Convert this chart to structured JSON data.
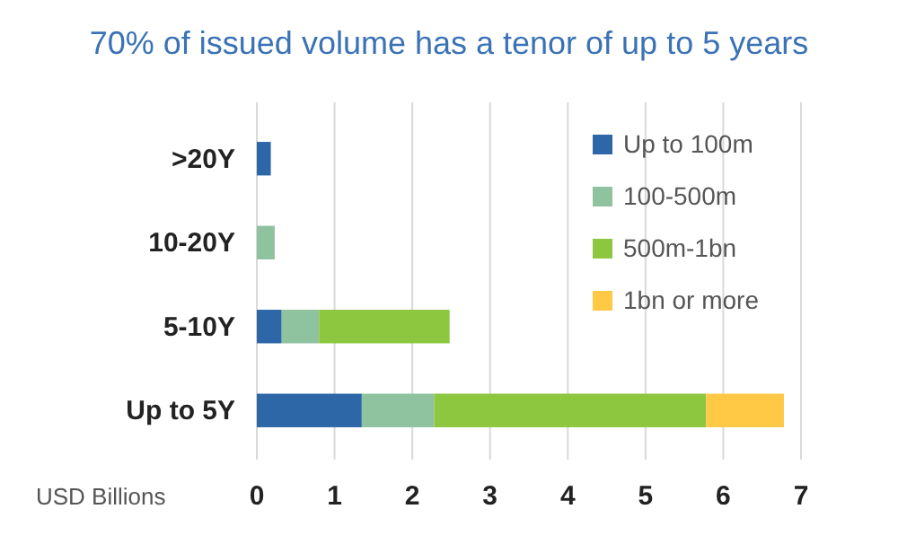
{
  "chart_data": {
    "type": "bar",
    "orientation": "horizontal",
    "stacked": true,
    "title": "70% of issued volume has a tenor of up to 5 years",
    "xlabel": "USD Billions",
    "categories": [
      ">20Y",
      "10-20Y",
      "5-10Y",
      "Up to 5Y"
    ],
    "series": [
      {
        "name": "Up to 100m",
        "color": "#2e67a8",
        "values": [
          0.18,
          null,
          0.32,
          1.35
        ]
      },
      {
        "name": "100-500m",
        "color": "#8fc29f",
        "values": [
          null,
          0.23,
          0.48,
          0.93
        ]
      },
      {
        "name": "500m-1bn",
        "color": "#8dc63f",
        "values": [
          null,
          null,
          1.68,
          3.5
        ]
      },
      {
        "name": "1bn or more",
        "color": "#ffc845",
        "values": [
          null,
          null,
          null,
          1.0
        ]
      }
    ],
    "xlim": [
      0,
      7
    ],
    "xticks": [
      0,
      1,
      2,
      3,
      4,
      5,
      6,
      7
    ],
    "grid": "x",
    "legend": "top right"
  }
}
